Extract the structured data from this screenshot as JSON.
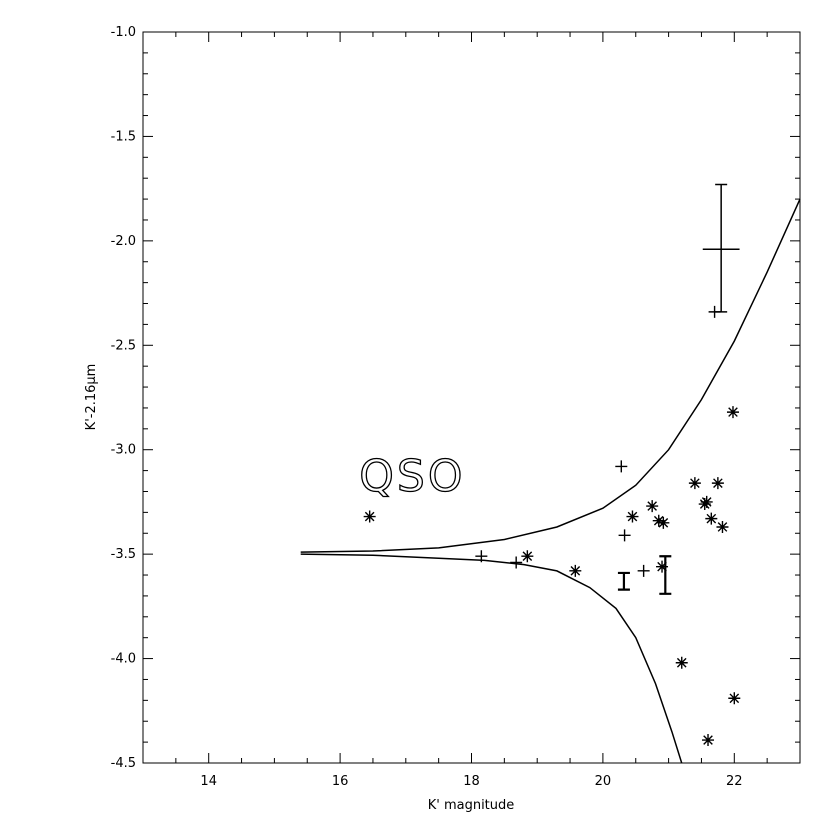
{
  "chart_data": {
    "type": "scatter",
    "title": "",
    "xlabel": "K' magnitude",
    "ylabel": "K'-2.16μm",
    "xlim": [
      13,
      23
    ],
    "ylim": [
      -4.5,
      -1.0
    ],
    "xticks": [
      14,
      16,
      18,
      20,
      22
    ],
    "xtick_labels": [
      "14",
      "16",
      "18",
      "20",
      "22"
    ],
    "yticks": [
      -1.0,
      -1.5,
      -2.0,
      -2.5,
      -3.0,
      -3.5,
      -4.0,
      -4.5
    ],
    "ytick_labels": [
      "-1.0",
      "-1.5",
      "-2.0",
      "-2.5",
      "-3.0",
      "-3.5",
      "-4.0",
      "-4.5"
    ],
    "grid": false,
    "annotations": [
      {
        "text": "QSO",
        "x": 17.1,
        "y": -3.12
      }
    ],
    "series": [
      {
        "marker": "asterisk",
        "points": [
          [
            16.45,
            -3.32
          ],
          [
            18.85,
            -3.51
          ],
          [
            19.58,
            -3.58
          ],
          [
            20.45,
            -3.32
          ],
          [
            20.75,
            -3.27
          ],
          [
            20.85,
            -3.34
          ],
          [
            20.92,
            -3.35
          ],
          [
            20.9,
            -3.56
          ],
          [
            21.2,
            -4.02
          ],
          [
            21.4,
            -3.16
          ],
          [
            21.55,
            -3.26
          ],
          [
            21.58,
            -3.25
          ],
          [
            21.65,
            -3.33
          ],
          [
            21.75,
            -3.16
          ],
          [
            21.82,
            -3.37
          ],
          [
            21.98,
            -2.82
          ],
          [
            22.0,
            -4.19
          ],
          [
            21.6,
            -4.39
          ]
        ]
      },
      {
        "marker": "plus",
        "points": [
          [
            18.15,
            -3.51
          ],
          [
            18.68,
            -3.54
          ],
          [
            20.28,
            -3.08
          ],
          [
            20.33,
            -3.41
          ],
          [
            20.62,
            -3.58
          ],
          [
            21.7,
            -2.34
          ]
        ]
      }
    ],
    "errorbars": [
      {
        "x": 21.8,
        "y": -2.04,
        "yerr_low": 0.3,
        "yerr_high": 0.31,
        "xerr": 0.28
      },
      {
        "x": 20.32,
        "y": -3.63,
        "yerr_low": 0.04,
        "yerr_high": 0.04,
        "xerr": 0
      },
      {
        "x": 20.95,
        "y": -3.6,
        "yerr_low": 0.09,
        "yerr_high": 0.09,
        "xerr": 0
      }
    ],
    "curves": [
      {
        "points": [
          [
            15.4,
            -3.49
          ],
          [
            16.5,
            -3.485
          ],
          [
            17.5,
            -3.47
          ],
          [
            18.5,
            -3.43
          ],
          [
            19.3,
            -3.37
          ],
          [
            20.0,
            -3.28
          ],
          [
            20.5,
            -3.17
          ],
          [
            21.0,
            -3.0
          ],
          [
            21.5,
            -2.76
          ],
          [
            22.0,
            -2.48
          ],
          [
            22.5,
            -2.15
          ],
          [
            23.0,
            -1.8
          ]
        ]
      },
      {
        "points": [
          [
            15.4,
            -3.5
          ],
          [
            16.5,
            -3.505
          ],
          [
            17.5,
            -3.52
          ],
          [
            18.2,
            -3.53
          ],
          [
            18.8,
            -3.55
          ],
          [
            19.3,
            -3.58
          ],
          [
            19.8,
            -3.66
          ],
          [
            20.2,
            -3.76
          ],
          [
            20.5,
            -3.9
          ],
          [
            20.8,
            -4.12
          ],
          [
            21.05,
            -4.35
          ],
          [
            21.2,
            -4.5
          ]
        ]
      }
    ]
  }
}
